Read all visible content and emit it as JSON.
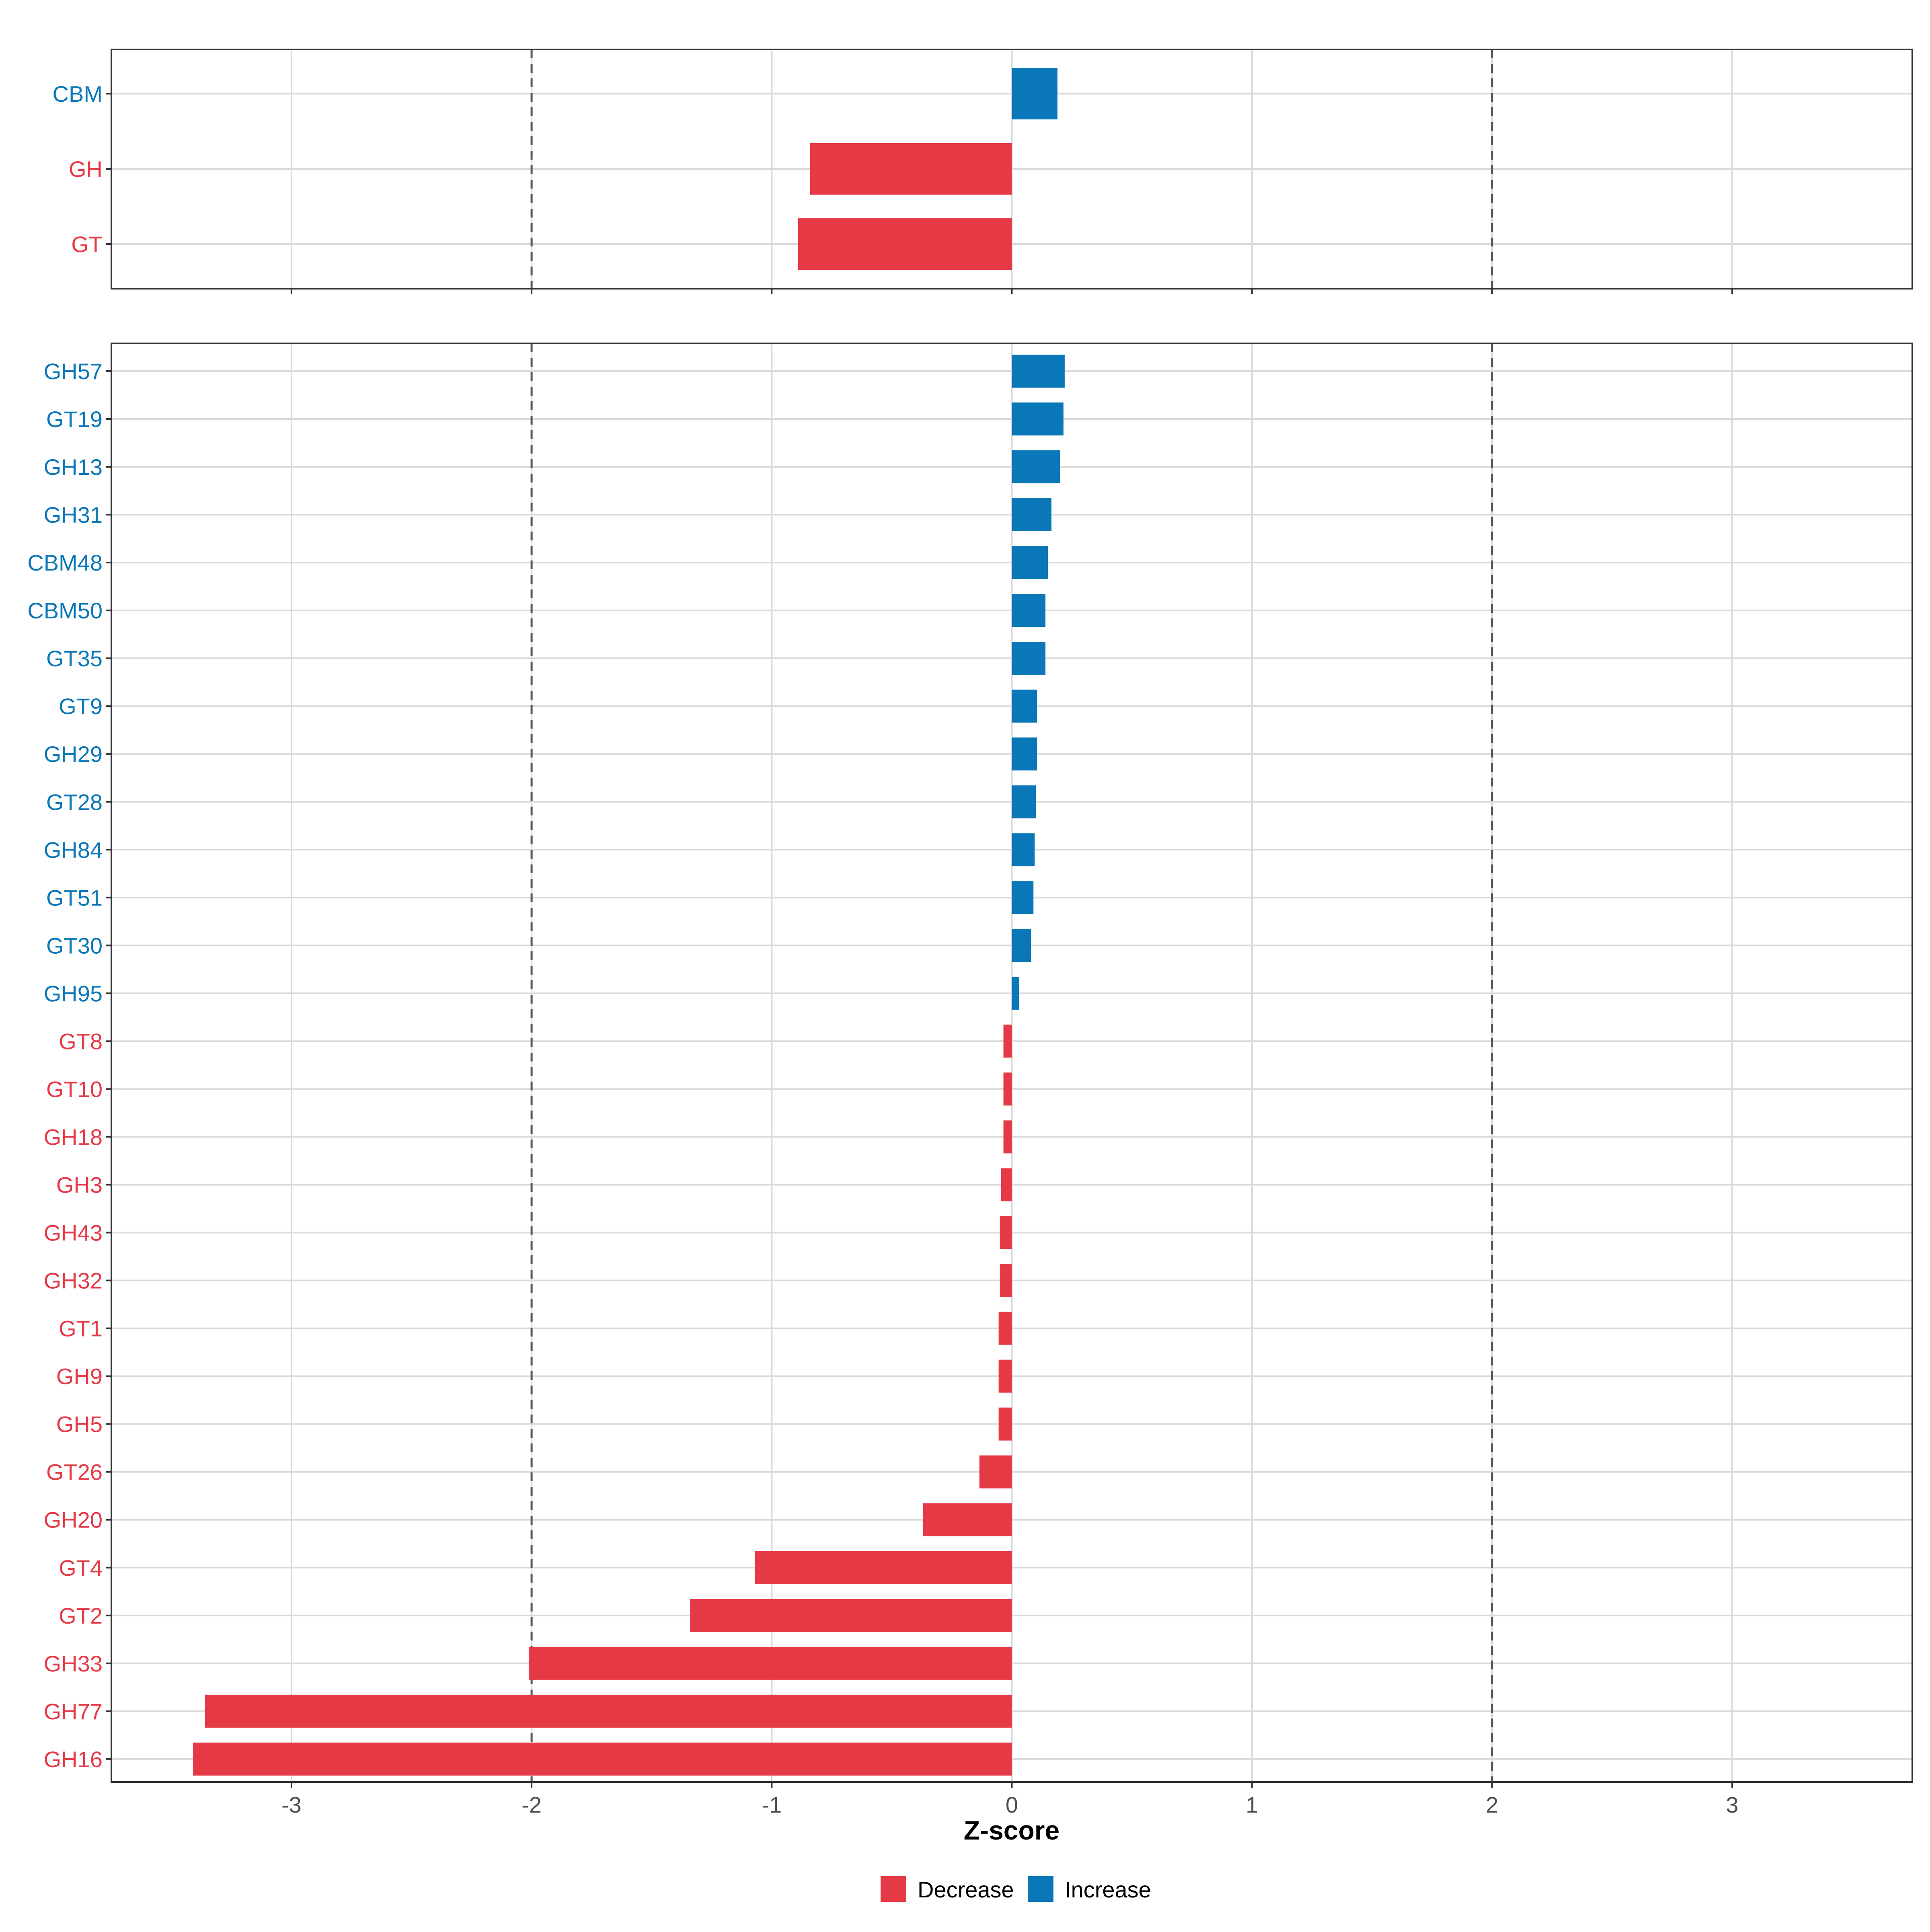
{
  "colors": {
    "decrease": "#E63946",
    "increase": "#0A77B8",
    "grid": "#DADADA",
    "panel_border": "#333333",
    "ref_line": "#555555",
    "tick_text": "#4D4D4D"
  },
  "chart_data": [
    {
      "type": "bar",
      "orientation": "horizontal",
      "panel": "top",
      "xlim": [
        -3.75,
        3.75
      ],
      "ref_lines": [
        -2,
        2
      ],
      "categories": [
        "CBM",
        "GH",
        "GT"
      ],
      "values": [
        0.19,
        -0.84,
        -0.89
      ],
      "directions": [
        "Increase",
        "Decrease",
        "Decrease"
      ]
    },
    {
      "type": "bar",
      "orientation": "horizontal",
      "panel": "bottom",
      "xlim": [
        -3.75,
        3.75
      ],
      "ref_lines": [
        -2,
        2
      ],
      "categories": [
        "GH57",
        "GT19",
        "GH13",
        "GH31",
        "CBM48",
        "CBM50",
        "GT35",
        "GT9",
        "GH29",
        "GT28",
        "GH84",
        "GT51",
        "GT30",
        "GH95",
        "GT8",
        "GT10",
        "GH18",
        "GH3",
        "GH43",
        "GH32",
        "GT1",
        "GH9",
        "GH5",
        "GT26",
        "GH20",
        "GT4",
        "GT2",
        "GH33",
        "GH77",
        "GH16"
      ],
      "values": [
        0.22,
        0.215,
        0.2,
        0.165,
        0.15,
        0.14,
        0.14,
        0.105,
        0.105,
        0.1,
        0.095,
        0.09,
        0.08,
        0.03,
        -0.035,
        -0.035,
        -0.035,
        -0.045,
        -0.05,
        -0.05,
        -0.055,
        -0.055,
        -0.055,
        -0.135,
        -0.37,
        -1.07,
        -1.34,
        -2.01,
        -3.36,
        -3.41
      ],
      "directions": [
        "Increase",
        "Increase",
        "Increase",
        "Increase",
        "Increase",
        "Increase",
        "Increase",
        "Increase",
        "Increase",
        "Increase",
        "Increase",
        "Increase",
        "Increase",
        "Increase",
        "Decrease",
        "Decrease",
        "Decrease",
        "Decrease",
        "Decrease",
        "Decrease",
        "Decrease",
        "Decrease",
        "Decrease",
        "Decrease",
        "Decrease",
        "Decrease",
        "Decrease",
        "Decrease",
        "Decrease",
        "Decrease"
      ],
      "xticks": [
        -3,
        -2,
        -1,
        0,
        1,
        2,
        3
      ],
      "xtick_labels": [
        "-3",
        "-2",
        "-1",
        "0",
        "1",
        "2",
        "3"
      ],
      "xlabel": "Z-score"
    }
  ],
  "legend": {
    "items": [
      {
        "label": "Decrease",
        "color_key": "decrease"
      },
      {
        "label": "Increase",
        "color_key": "increase"
      }
    ]
  }
}
